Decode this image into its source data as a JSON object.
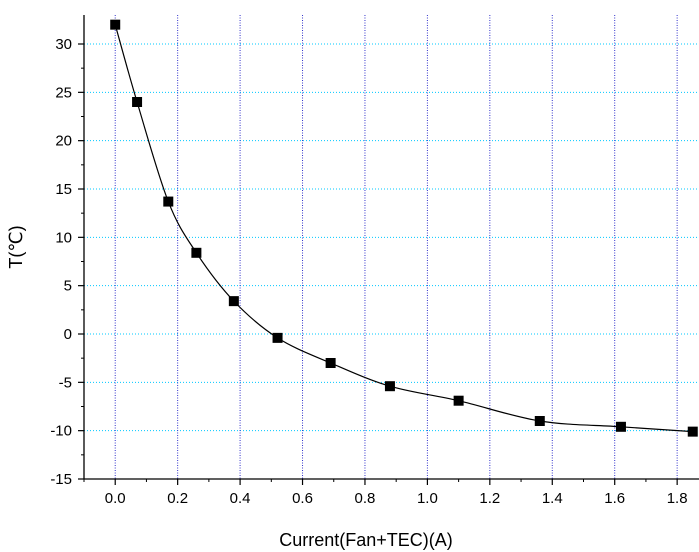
{
  "chart_data": {
    "type": "line",
    "title": "",
    "xlabel": "Current(Fan+TEC)(A)",
    "ylabel": "T(℃)",
    "xlim": [
      -0.1,
      1.87
    ],
    "ylim": [
      -15,
      33
    ],
    "xticks": [
      0.0,
      0.2,
      0.4,
      0.6,
      0.8,
      1.0,
      1.2,
      1.4,
      1.6,
      1.8
    ],
    "xtick_labels": [
      "0.0",
      "0.2",
      "0.4",
      "0.6",
      "0.8",
      "1.0",
      "1.2",
      "1.4",
      "1.6",
      "1.8"
    ],
    "yticks": [
      -15,
      -10,
      -5,
      0,
      5,
      10,
      15,
      20,
      25,
      30
    ],
    "ytick_labels": [
      "-15",
      "-10",
      "-5",
      "0",
      "5",
      "10",
      "15",
      "20",
      "25",
      "30"
    ],
    "grid": {
      "vertical": true,
      "horizontal": true,
      "vertical_color": "#3333cc",
      "horizontal_color": "#00c8ff"
    },
    "line_color": "#000000",
    "marker": "square",
    "marker_color": "#000000",
    "series": [
      {
        "x": [
          0.0,
          0.07,
          0.17,
          0.26,
          0.38,
          0.52,
          0.69,
          0.88,
          1.1,
          1.36,
          1.62,
          1.85
        ],
        "y": [
          32,
          24,
          13.7,
          8.4,
          3.4,
          -0.4,
          -3.0,
          -5.4,
          -6.9,
          -9.0,
          -9.6,
          -10.1
        ]
      }
    ]
  }
}
